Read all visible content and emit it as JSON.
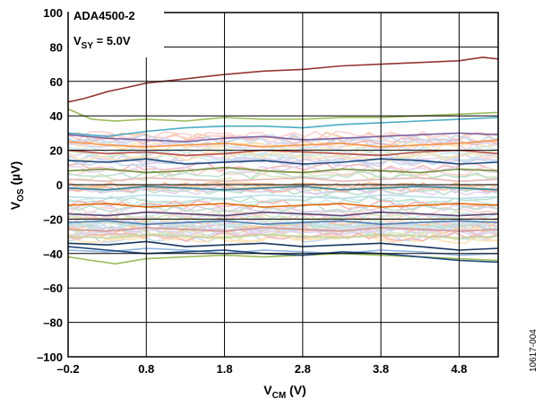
{
  "chart_data": {
    "type": "line",
    "xlim": [
      -0.2,
      5.3
    ],
    "ylim": [
      -100,
      100
    ],
    "x_ticks": [
      "–0.2",
      "0.8",
      "1.8",
      "2.8",
      "3.8",
      "4.8"
    ],
    "y_ticks": [
      "100",
      "80",
      "60",
      "40",
      "20",
      "0",
      "–20",
      "–40",
      "–60",
      "–80",
      "–100"
    ],
    "x_tick_values": [
      -0.2,
      0.8,
      1.8,
      2.8,
      3.8,
      4.8
    ],
    "y_tick_values": [
      100,
      80,
      60,
      40,
      20,
      0,
      -20,
      -40,
      -60,
      -80,
      -100
    ],
    "xlabel": {
      "main": "V",
      "sub": "CM",
      "unit": " (V)"
    },
    "ylabel": {
      "main": "V",
      "sub": "OS",
      "unit": " (µV)"
    },
    "grid": true,
    "annotation": {
      "line1": "ADA4500-2",
      "line2_main": "V",
      "line2_sub": "SY",
      "line2_rest": " = 5.0V"
    },
    "figure_number": "10617-004",
    "series_summary": "many unit-to-unit V_OS vs V_CM traces, mostly between -45 and +45 µV",
    "series": [
      {
        "color": "#943634",
        "x": [
          -0.2,
          0.0,
          0.3,
          0.6,
          0.8,
          1.2,
          1.8,
          2.3,
          2.8,
          3.3,
          3.8,
          4.3,
          4.8,
          5.1,
          5.3
        ],
        "values": [
          48,
          50,
          54,
          57,
          59,
          61,
          64,
          66,
          67,
          69,
          70,
          71,
          72,
          74,
          73
        ]
      },
      {
        "color": "#9bbb59",
        "x": [
          -0.2,
          0.1,
          0.4,
          0.8,
          1.3,
          1.8,
          2.3,
          2.8,
          3.3,
          3.8,
          4.3,
          4.8,
          5.3
        ],
        "values": [
          44,
          38,
          37,
          38,
          37,
          39,
          38,
          38,
          39,
          39,
          40,
          41,
          42
        ]
      },
      {
        "color": "#4bacc6",
        "x": [
          -0.2,
          0.3,
          0.8,
          1.3,
          1.8,
          2.3,
          2.8,
          3.3,
          3.8,
          4.3,
          4.8,
          5.3
        ],
        "values": [
          30,
          28,
          31,
          33,
          34,
          34,
          33,
          35,
          36,
          37,
          38,
          39
        ]
      },
      {
        "color": "#8064a2",
        "x": [
          -0.2,
          0.3,
          0.8,
          1.3,
          1.8,
          2.3,
          2.8,
          3.3,
          3.8,
          4.3,
          4.8,
          5.3
        ],
        "values": [
          29,
          27,
          26,
          25,
          27,
          28,
          26,
          27,
          28,
          29,
          30,
          29
        ]
      },
      {
        "color": "#f79646",
        "x": [
          -0.2,
          0.3,
          0.8,
          1.3,
          1.8,
          2.3,
          2.8,
          3.3,
          3.8,
          4.3,
          4.8,
          5.3
        ],
        "values": [
          25,
          23,
          22,
          23,
          24,
          22,
          23,
          24,
          22,
          23,
          24,
          26
        ]
      },
      {
        "color": "#c0504d",
        "x": [
          -0.2,
          0.3,
          0.8,
          1.3,
          1.8,
          2.3,
          2.8,
          3.3,
          3.8,
          4.3,
          4.8,
          5.3
        ],
        "values": [
          20,
          18,
          19,
          17,
          18,
          20,
          19,
          18,
          17,
          19,
          20,
          18
        ]
      },
      {
        "color": "#1f497d",
        "x": [
          -0.2,
          0.3,
          0.8,
          1.3,
          1.8,
          2.3,
          2.8,
          3.3,
          3.8,
          4.3,
          4.8,
          5.3
        ],
        "values": [
          14,
          13,
          15,
          12,
          13,
          14,
          12,
          13,
          15,
          14,
          12,
          13
        ]
      },
      {
        "color": "#77933c",
        "x": [
          -0.2,
          0.3,
          0.8,
          1.3,
          1.8,
          2.3,
          2.8,
          3.3,
          3.8,
          4.3,
          4.8,
          5.3
        ],
        "values": [
          8,
          9,
          7,
          8,
          10,
          8,
          7,
          9,
          8,
          7,
          9,
          8
        ]
      },
      {
        "color": "#e6b9b8",
        "x": [
          -0.2,
          0.3,
          0.8,
          1.3,
          1.8,
          2.3,
          2.8,
          3.3,
          3.8,
          4.3,
          4.8,
          5.3
        ],
        "values": [
          3,
          2,
          4,
          3,
          2,
          3,
          4,
          2,
          3,
          4,
          2,
          3
        ]
      },
      {
        "color": "#31859c",
        "x": [
          -0.2,
          0.3,
          0.8,
          1.3,
          1.8,
          2.3,
          2.8,
          3.3,
          3.8,
          4.3,
          4.8,
          5.3
        ],
        "values": [
          -2,
          -3,
          -1,
          -2,
          -3,
          -2,
          -1,
          -3,
          -2,
          -1,
          -2,
          -3
        ]
      },
      {
        "color": "#b7dee8",
        "x": [
          -0.2,
          0.3,
          0.8,
          1.3,
          1.8,
          2.3,
          2.8,
          3.3,
          3.8,
          4.3,
          4.8,
          5.3
        ],
        "values": [
          -7,
          -8,
          -6,
          -7,
          -8,
          -6,
          -7,
          -8,
          -6,
          -7,
          -8,
          -7
        ]
      },
      {
        "color": "#e46c0a",
        "x": [
          -0.2,
          0.3,
          0.8,
          1.3,
          1.8,
          2.3,
          2.8,
          3.3,
          3.8,
          4.3,
          4.8,
          5.3
        ],
        "values": [
          -12,
          -11,
          -13,
          -12,
          -11,
          -13,
          -12,
          -11,
          -13,
          -12,
          -11,
          -12
        ]
      },
      {
        "color": "#60497a",
        "x": [
          -0.2,
          0.3,
          0.8,
          1.3,
          1.8,
          2.3,
          2.8,
          3.3,
          3.8,
          4.3,
          4.8,
          5.3
        ],
        "values": [
          -17,
          -18,
          -16,
          -17,
          -18,
          -16,
          -17,
          -18,
          -16,
          -17,
          -18,
          -17
        ]
      },
      {
        "color": "#4f81bd",
        "x": [
          -0.2,
          0.3,
          0.8,
          1.3,
          1.8,
          2.3,
          2.8,
          3.3,
          3.8,
          4.3,
          4.8,
          5.3
        ],
        "values": [
          -22,
          -21,
          -23,
          -22,
          -21,
          -23,
          -22,
          -21,
          -23,
          -22,
          -21,
          -22
        ]
      },
      {
        "color": "#d99694",
        "x": [
          -0.2,
          0.3,
          0.8,
          1.3,
          1.8,
          2.3,
          2.8,
          3.3,
          3.8,
          4.3,
          4.8,
          5.3
        ],
        "values": [
          -26,
          -27,
          -25,
          -26,
          -27,
          -25,
          -26,
          -27,
          -25,
          -26,
          -27,
          -26
        ]
      },
      {
        "color": "#c3d69b",
        "x": [
          -0.2,
          0.3,
          0.8,
          1.3,
          1.8,
          2.3,
          2.8,
          3.3,
          3.8,
          4.3,
          4.8,
          5.3
        ],
        "values": [
          -30,
          -31,
          -29,
          -30,
          -31,
          -29,
          -30,
          -31,
          -29,
          -30,
          -31,
          -30
        ]
      },
      {
        "color": "#17375e",
        "x": [
          -0.2,
          0.3,
          0.8,
          1.3,
          1.8,
          2.3,
          2.8,
          3.3,
          3.8,
          4.3,
          4.8,
          5.3
        ],
        "values": [
          -34,
          -35,
          -33,
          -36,
          -35,
          -34,
          -36,
          -35,
          -34,
          -36,
          -38,
          -37
        ]
      },
      {
        "color": "#8db3e2",
        "x": [
          -0.2,
          0.3,
          0.8,
          1.3,
          1.8,
          2.3,
          2.8,
          3.3,
          3.8,
          4.3,
          4.8,
          5.3
        ],
        "values": [
          -38,
          -39,
          -37,
          -38,
          -40,
          -38,
          -39,
          -40,
          -38,
          -39,
          -41,
          -40
        ]
      },
      {
        "color": "#9bbb59",
        "x": [
          -0.2,
          0.1,
          0.4,
          0.8,
          1.3,
          1.8,
          2.3,
          2.8,
          3.3,
          3.8,
          4.3,
          4.8,
          5.3
        ],
        "values": [
          -42,
          -44,
          -46,
          -43,
          -42,
          -41,
          -42,
          -41,
          -40,
          -41,
          -42,
          -43,
          -44
        ]
      },
      {
        "color": "#1f497d",
        "x": [
          -0.2,
          0.3,
          0.8,
          1.3,
          1.8,
          2.3,
          2.8,
          3.3,
          3.8,
          4.3,
          4.8,
          5.3
        ],
        "values": [
          -36,
          -38,
          -40,
          -39,
          -38,
          -40,
          -41,
          -39,
          -40,
          -42,
          -44,
          -45
        ]
      }
    ]
  }
}
